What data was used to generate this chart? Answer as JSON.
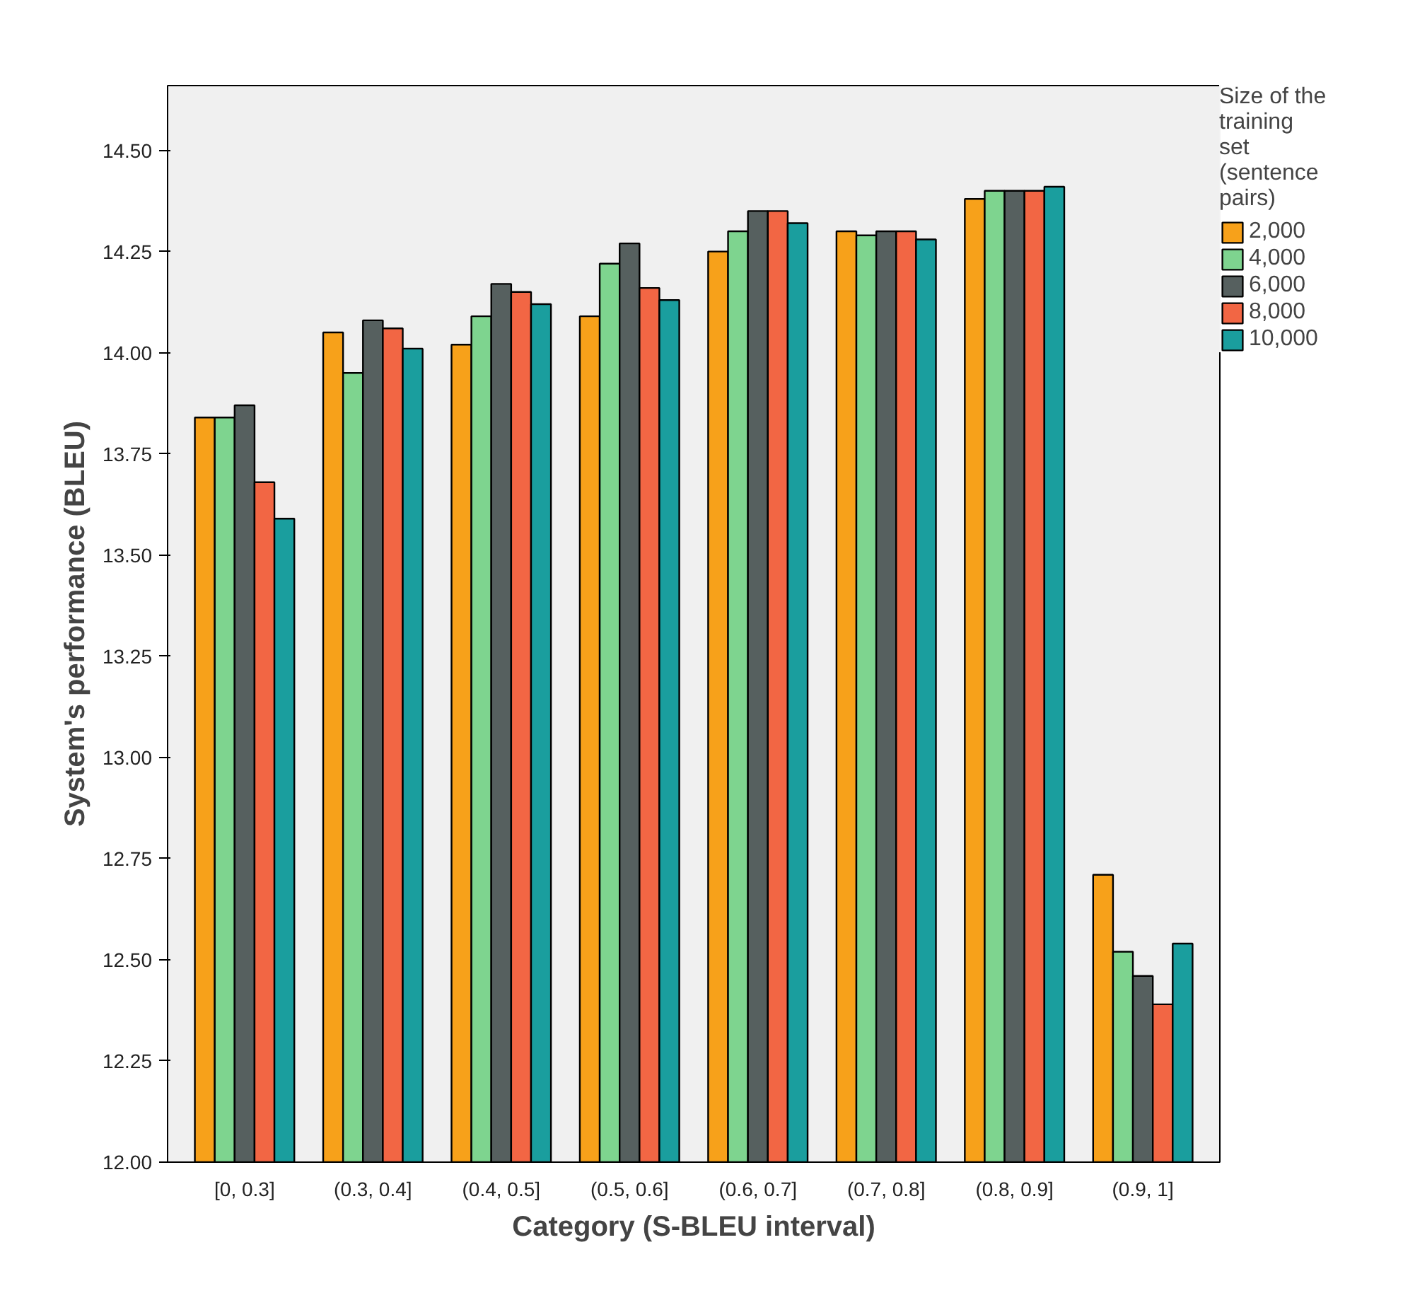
{
  "chart_data": {
    "type": "bar",
    "xlabel": "Category (S-BLEU interval)",
    "ylabel": "System's performance (BLEU)",
    "legend_title": "Size of the training set (sentence pairs)",
    "categories": [
      "[0, 0.3]",
      "(0.3, 0.4]",
      "(0.4, 0.5]",
      "(0.5, 0.6]",
      "(0.6, 0.7]",
      "(0.7, 0.8]",
      "(0.8, 0.9]",
      "(0.9, 1]"
    ],
    "series": [
      {
        "name": "2,000",
        "color": "#f7a11a",
        "values": [
          13.84,
          14.05,
          14.02,
          14.09,
          14.25,
          14.3,
          14.38,
          12.71
        ]
      },
      {
        "name": "4,000",
        "color": "#7ed48f",
        "values": [
          13.84,
          13.95,
          14.09,
          14.22,
          14.3,
          14.29,
          14.4,
          12.52
        ]
      },
      {
        "name": "6,000",
        "color": "#56605f",
        "values": [
          13.87,
          14.08,
          14.17,
          14.27,
          14.35,
          14.3,
          14.4,
          12.46
        ]
      },
      {
        "name": "8,000",
        "color": "#f26644",
        "values": [
          13.68,
          14.06,
          14.15,
          14.16,
          14.35,
          14.3,
          14.4,
          12.39
        ]
      },
      {
        "name": "10,000",
        "color": "#1a9e9e",
        "values": [
          13.59,
          14.01,
          14.12,
          14.13,
          14.32,
          14.28,
          14.41,
          12.54
        ]
      }
    ],
    "ylim": [
      12.0,
      14.66
    ],
    "yticks": [
      {
        "value": 12.0,
        "label": "12.00"
      },
      {
        "value": 12.25,
        "label": "12.25"
      },
      {
        "value": 12.5,
        "label": "12.50"
      },
      {
        "value": 12.75,
        "label": "12.75"
      },
      {
        "value": 13.0,
        "label": "13.00"
      },
      {
        "value": 13.25,
        "label": "13.25"
      },
      {
        "value": 13.5,
        "label": "13.50"
      },
      {
        "value": 13.75,
        "label": "13.75"
      },
      {
        "value": 14.0,
        "label": "14.00"
      },
      {
        "value": 14.25,
        "label": "14.25"
      },
      {
        "value": 14.5,
        "label": "14.50"
      }
    ],
    "grid": false,
    "legend": "right"
  }
}
